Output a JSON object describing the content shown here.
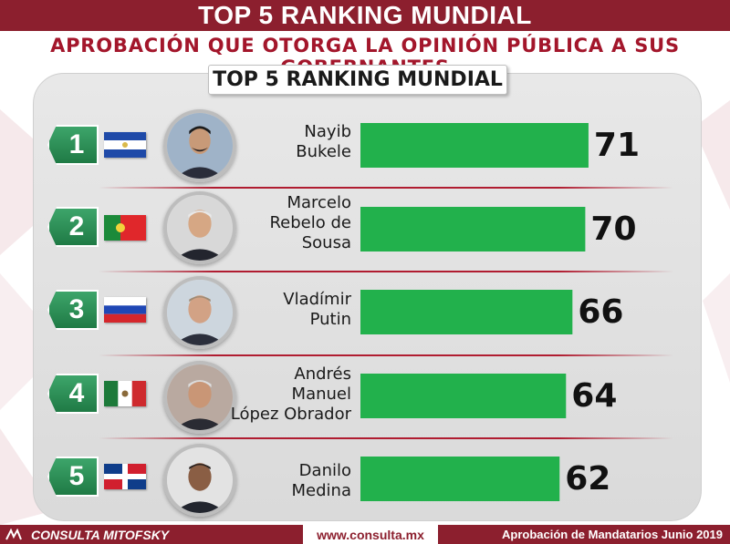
{
  "header": {
    "title": "TOP 5 RANKING MUNDIAL",
    "subtitle": "APROBACIÓN QUE OTORGA LA OPINIÓN PÚBLICA A SUS GOBERNANTES"
  },
  "panel": {
    "title": "TOP 5 RANKING MUNDIAL"
  },
  "colors": {
    "brand": "#8c1f2e",
    "bar": "#22b14c",
    "rank_badge": "#2e8b57",
    "panel_bg": "#e0e0e0"
  },
  "chart_data": {
    "type": "bar",
    "orientation": "horizontal",
    "categories": [
      "Nayib Bukele",
      "Marcelo Rebelo de Sousa",
      "Vladímir Putin",
      "Andrés Manuel López Obrador",
      "Danilo Medina"
    ],
    "values": [
      71,
      70,
      66,
      64,
      62
    ],
    "value_labels": [
      "71",
      "70",
      "66",
      "64",
      "62"
    ],
    "ranks": [
      "1",
      "2",
      "3",
      "4",
      "5"
    ],
    "name_lines": [
      [
        "Nayib",
        "Bukele"
      ],
      [
        "Marcelo",
        "Rebelo de",
        "Sousa"
      ],
      [
        "Vladímir",
        "Putin"
      ],
      [
        "Andrés",
        "Manuel",
        "López Obrador"
      ],
      [
        "Danilo",
        "Medina"
      ]
    ],
    "flags": [
      "flag-el-salvador",
      "flag-portugal",
      "flag-russia",
      "flag-mexico",
      "flag-dominican-republic"
    ],
    "grid": false,
    "legend": "none"
  },
  "footer": {
    "brand": "CONSULTA MITOFSKY",
    "url": "www.consulta.mx",
    "right": "Aprobación de Mandatarios Junio 2019"
  }
}
